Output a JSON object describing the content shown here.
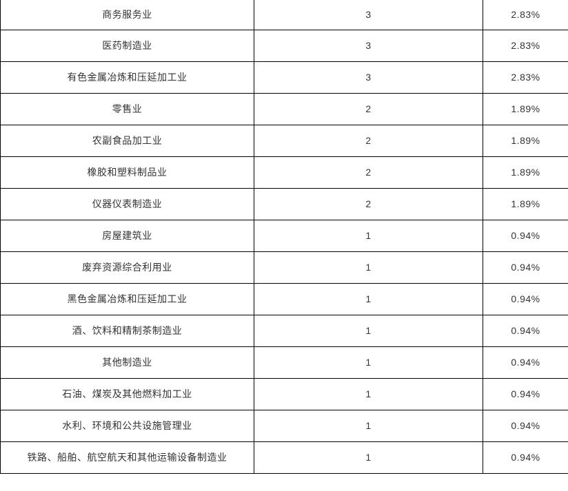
{
  "table": {
    "columns": [
      {
        "key": "industry",
        "name": "industry-name-column"
      },
      {
        "key": "count",
        "name": "count-column"
      },
      {
        "key": "percentage",
        "name": "percentage-column"
      }
    ],
    "rows": [
      {
        "industry": "商务服务业",
        "count": "3",
        "percentage": "2.83%"
      },
      {
        "industry": "医药制造业",
        "count": "3",
        "percentage": "2.83%"
      },
      {
        "industry": "有色金属冶炼和压延加工业",
        "count": "3",
        "percentage": "2.83%"
      },
      {
        "industry": "零售业",
        "count": "2",
        "percentage": "1.89%"
      },
      {
        "industry": "农副食品加工业",
        "count": "2",
        "percentage": "1.89%"
      },
      {
        "industry": "橡胶和塑料制品业",
        "count": "2",
        "percentage": "1.89%"
      },
      {
        "industry": "仪器仪表制造业",
        "count": "2",
        "percentage": "1.89%"
      },
      {
        "industry": "房屋建筑业",
        "count": "1",
        "percentage": "0.94%"
      },
      {
        "industry": "废弃资源综合利用业",
        "count": "1",
        "percentage": "0.94%"
      },
      {
        "industry": "黑色金属冶炼和压延加工业",
        "count": "1",
        "percentage": "0.94%"
      },
      {
        "industry": "酒、饮料和精制茶制造业",
        "count": "1",
        "percentage": "0.94%"
      },
      {
        "industry": "其他制造业",
        "count": "1",
        "percentage": "0.94%"
      },
      {
        "industry": "石油、煤炭及其他燃料加工业",
        "count": "1",
        "percentage": "0.94%"
      },
      {
        "industry": "水利、环境和公共设施管理业",
        "count": "1",
        "percentage": "0.94%"
      },
      {
        "industry": "铁路、船舶、航空航天和其他运输设备制造业",
        "count": "1",
        "percentage": "0.94%"
      }
    ]
  },
  "colors": {
    "border": "#000000",
    "text": "#333333",
    "background": "#ffffff"
  }
}
